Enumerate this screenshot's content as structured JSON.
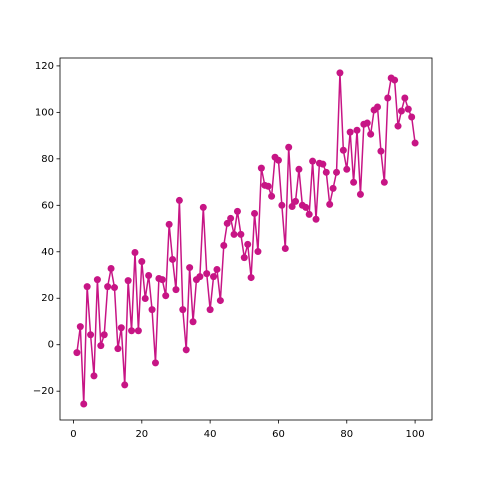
{
  "chart_data": {
    "type": "line",
    "marker": "circle",
    "color": "#c71585",
    "x": [
      1,
      2,
      3,
      4,
      5,
      6,
      7,
      8,
      9,
      10,
      11,
      12,
      13,
      14,
      15,
      16,
      17,
      18,
      19,
      20,
      21,
      22,
      23,
      24,
      25,
      26,
      27,
      28,
      29,
      30,
      31,
      32,
      33,
      34,
      35,
      36,
      37,
      38,
      39,
      40,
      41,
      42,
      43,
      44,
      45,
      46,
      47,
      48,
      49,
      50,
      51,
      52,
      53,
      54,
      55,
      56,
      57,
      58,
      59,
      60,
      61,
      62,
      63,
      64,
      65,
      66,
      67,
      68,
      69,
      70,
      71,
      72,
      73,
      74,
      75,
      76,
      77,
      78,
      79,
      80,
      81,
      82,
      83,
      84,
      85,
      86,
      87,
      88,
      89,
      90,
      91,
      92,
      93,
      94,
      95,
      96,
      97,
      98,
      99,
      100
    ],
    "values": [
      -3.4,
      7.8,
      -25.5,
      25,
      4.3,
      -13.4,
      28,
      -0.4,
      4.3,
      25,
      32.8,
      24.6,
      -1.7,
      7.3,
      -17.3,
      27.6,
      6,
      39.7,
      6,
      35.8,
      19.9,
      29.8,
      15.1,
      -7.8,
      28.5,
      28,
      21.1,
      51.8,
      36.7,
      23.7,
      62.1,
      15.1,
      -2.2,
      33.2,
      9.9,
      28,
      29.3,
      59.1,
      30.6,
      15.1,
      29.3,
      32.4,
      19,
      42.7,
      52.2,
      54.4,
      47.5,
      57.4,
      47.5,
      37.5,
      43.2,
      28.9,
      56.5,
      40.1,
      76,
      68.6,
      68.2,
      63.9,
      80.7,
      79.4,
      60,
      41.4,
      85,
      59.5,
      61.7,
      75.5,
      60,
      59.1,
      56.1,
      79,
      54,
      78.1,
      77.7,
      74.2,
      60.4,
      67.3,
      74.2,
      117,
      83.7,
      75.5,
      91.5,
      69.9,
      92.3,
      64.7,
      94.9,
      95.4,
      90.6,
      101,
      102.3,
      83.3,
      69.9,
      106.2,
      114.8,
      113.9,
      94.1,
      100.6,
      106.2,
      101.4,
      98,
      86.8
    ],
    "xlim": [
      -3.95,
      104.95
    ],
    "ylim": [
      -32.4,
      123.4
    ],
    "xticks": [
      0,
      20,
      40,
      60,
      80,
      100
    ],
    "yticks": [
      {
        "value": -20,
        "label": "−20"
      },
      0,
      20,
      40,
      60,
      80,
      100,
      120
    ]
  }
}
